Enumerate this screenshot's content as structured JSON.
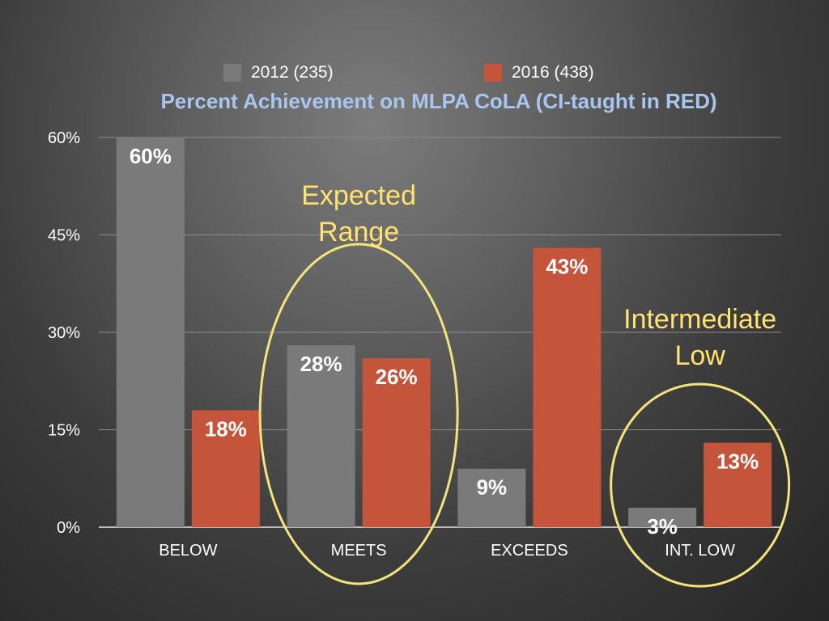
{
  "chart_data": {
    "type": "bar",
    "title": "Percent Achievement on MLPA CoLA (CI-taught in RED)",
    "categories": [
      "BELOW",
      "MEETS",
      "EXCEEDS",
      "INT. LOW"
    ],
    "series": [
      {
        "name": "2012 (235)",
        "color": "#7a7a7a",
        "values": [
          60,
          28,
          9,
          3
        ],
        "labels": [
          "60%",
          "28%",
          "9%",
          "3%"
        ]
      },
      {
        "name": "2016 (438)",
        "color": "#c4553a",
        "values": [
          18,
          26,
          43,
          13
        ],
        "labels": [
          "18%",
          "26%",
          "43%",
          "13%"
        ]
      }
    ],
    "ylim": [
      0,
      60
    ],
    "yticks": [
      0,
      15,
      30,
      45,
      60
    ],
    "ytick_labels": [
      "0%",
      "15%",
      "30%",
      "45%",
      "60%"
    ],
    "grid": true,
    "legend_position": "top",
    "annotations": [
      {
        "lines": [
          "Expected",
          "Range"
        ],
        "category": "MEETS",
        "color": "#f2e47a"
      },
      {
        "lines": [
          "Intermediate",
          "Low"
        ],
        "category": "INT. LOW",
        "color": "#f2e47a"
      }
    ]
  }
}
